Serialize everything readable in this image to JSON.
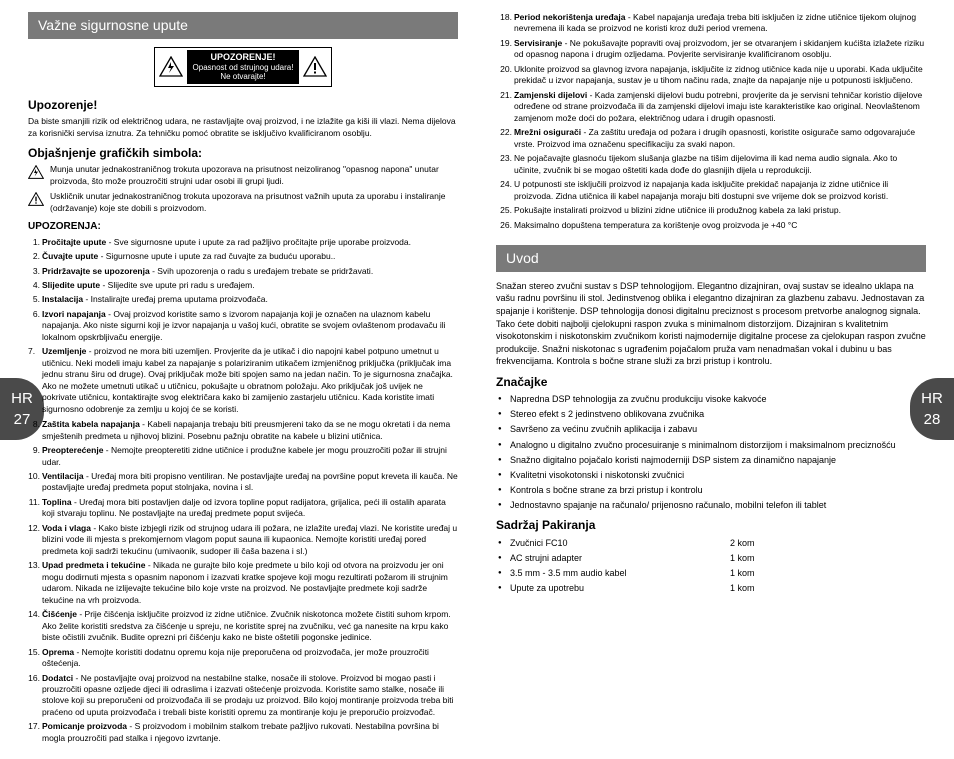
{
  "left_badge": {
    "lang": "HR",
    "page": "27"
  },
  "right_badge": {
    "lang": "HR",
    "page": "28"
  },
  "header_left": "Važne sigurnosne upute",
  "warning_box": {
    "title": "UPOZORENJE!",
    "line1": "Opasnost od strujnog udara!",
    "line2": "Ne otvarajte!"
  },
  "upozorenje_title": "Upozorenje!",
  "upozorenje_text": "Da biste smanjili rizik od električnog udara, ne rastavljajte ovaj proizvod, i ne izlažite ga kiši ili vlazi. Nema dijelova za korisnički servisa iznutra. Za tehničku pomoć obratite se isključivo kvalificiranom osoblju.",
  "simboli_title": "Objašnjenje grafičkih simbola:",
  "simbol1": "Munja unutar jednakostraničnog trokuta upozorava na prisutnost neizoliranog \"opasnog napona\" unutar proizvoda, što može prouzročiti strujni udar osobi ili grupi ljudi.",
  "simbol2": "Uskličnik unutar jednakostraničnog trokuta upozorava na prisutnost važnih uputa za uporabu i instaliranje (održavanje) koje ste dobili s proizvodom.",
  "upozorenja_label": "UPOZORENJA:",
  "list_left": [
    "<b>Pročitajte upute</b> - Sve sigurnosne upute i upute za rad pažljivo pročitajte prije uporabe proizvoda.",
    "<b>Čuvajte upute</b> - Sigurnosne upute i upute za rad čuvajte za buduću uporabu..",
    "<b>Pridržavajte se upozorenja</b> - Svih upozorenja o radu s uređajem trebate se pridržavati.",
    "<b>Slijedite upute</b> - Slijedite sve upute pri radu s uređajem.",
    "<b>Instalacija</b> - Instalirajte uređaj prema uputama proizvođača.",
    "<b>Izvori napajanja</b> - Ovaj proizvod koristite samo s izvorom napajanja koji je označen na ulaznom kabelu napajanja. Ako niste sigurni koji je izvor napajanja u vašoj kući, obratite se svojem ovlaštenom prodavaču ili lokalnom opskrbljivaču energije."
  ],
  "item7": "<b>Uzemljenje</b> - proizvod ne mora biti uzemljen. Provjerite da je utikač i dio napojni kabel potpuno umetnut u utičnicu. Neki modeli imaju kabel za napajanje s polariziranim utikačem izmjeničnog priključka (priključak ima jednu stranu širu od druge). Ovaj priključak može biti spojen samo na jedan način. To je sigurnosna značajka. Ako ne možete umetnuti utikač u utičnicu, pokušajte u obratnom položaju. Ako priključak još uvijek ne pokrivate utičnicu, kontaktirajte svog električara kako bi zamijenio zastarjelu utičnicu. Kada koristite imati sigurnosno odobrenje za zemlju u kojoj će se koristi.",
  "list_left2": [
    "<b>Zaštita kabela napajanja</b> - Kabeli napajanja trebaju biti preusmjereni tako da se ne mogu okretati i da nema smještenih predmeta u njihovoj blizini. Posebnu pažnju obratite na kabele u blizini utičnica.",
    "<b>Preopterećenje</b> - Nemojte preopteretiti zidne utičnice i produžne kabele jer mogu prouzročiti požar ili strujni udar.",
    "<b>Ventilacija</b> - Uređaj mora biti propisno ventiliran. Ne postavljajte uređaj na površine poput kreveta ili kauča. Ne postavljajte uređaj predmeta poput stolnjaka, novina i sl.",
    "<b>Toplina</b> - Uređaj mora biti postavljen dalje od izvora topline poput radijatora, grijalica, peći ili ostalih aparata koji stvaraju toplinu. Ne postavljajte na uređaj predmete poput svijeća.",
    "<b>Voda i vlaga</b> - Kako biste izbjegli rizik od strujnog udara ili požara, ne izlažite uređaj vlazi. Ne koristite uređaj u blizini vode ili mjesta s prekomjernom vlagom poput sauna ili kupaonica. Nemojte koristiti uređaj pored predmeta koji sadrži tekućinu (umivaonik, sudoper ili čaša bazena i sl.)",
    "<b>Upad predmeta i tekućine</b> - Nikada ne gurajte bilo koje predmete u bilo koji od otvora na proizvodu jer oni mogu dodirnuti mjesta s opasnim naponom i izazvati kratke spojeve koji mogu rezultirati požarom ili strujnim udarom. Nikada ne izlijevajte tekućine bilo koje vrste na proizvod. Ne postavljajte predmete koji sadrže tekućine na vrh proizvoda.",
    "<b>Čišćenje</b> - Prije čišćenja isključite proizvod iz zidne utičnice. Zvučnik niskotonca možete čistiti suhom krpom. Ako želite koristiti sredstva za čišćenje u spreju, ne koristite sprej na zvučniku, već ga nanesite na krpu kako biste očistili zvučnik. Budite oprezni pri čišćenju kako ne biste oštetili pogonske jedinice.",
    "<b>Oprema</b> - Nemojte koristiti dodatnu opremu koja nije preporučena od proizvođača, jer može prouzročiti oštećenja.",
    "<b>Dodatci</b> - Ne postavljajte ovaj proizvod na nestabilne stalke, nosače ili stolove. Proizvod bi mogao pasti i prouzročiti opasne ozljede djeci ili odraslima i izazvati oštećenje proizvoda. Koristite samo stalke, nosače ili stolove koji su preporučeni od proizvođača ili se prodaju uz proizvod. Bilo kojoj montiranje proizvoda treba biti praćeno od uputa proizvođača i trebali biste koristiti opremu za montiranje koju je preporučio proizvođač.",
    "<b>Pomicanje proizvoda</b> - S proizvodom i mobilnim stalkom trebate pažljivo rukovati. Nestabilna površina bi mogla prouzročiti pad stalka i njegovo izvrtanje."
  ],
  "list_right": [
    "<b>Period nekorištenja uređaja</b> - Kabel napajanja uređaja treba biti isključen iz zidne utičnice tijekom olujnog nevremena ili kada se proizvod ne koristi kroz duži period vremena.",
    "<b>Servisiranje</b> - Ne pokušavajte popraviti ovaj proizvodom, jer se otvaranjem i skidanjem kućišta izlažete riziku od opasnog napona i drugim ozljedama. Povjerite servisiranje kvalificiranom osoblju.",
    "Uklonite proizvod sa glavnog izvora napajanja, isključite iz zidnog utičnice kada nije u uporabi. Kada uključite prekidač u izvor napajanja, sustav je u tihom načinu rada, znajte da napajanje nije u potpunosti isključeno.",
    "<b>Zamjenski dijelovi</b> - Kada zamjenski dijelovi budu potrebni, provjerite da je servisni tehničar koristio dijelove određene od strane proizvođača ili da zamjenski dijelovi imaju iste karakteristike kao original. Neovlaštenom zamjenom može doći do požara, električnog udara i drugih opasnosti.",
    "<b>Mrežni osigurači</b> - Za zaštitu uređaja od požara i drugih opasnosti, koristite osigurače samo odgovarajuće vrste. Proizvod ima označenu specifikaciju za svaki napon.",
    "Ne pojačavajte glasnoću tijekom slušanja glazbe na tišim dijelovima ili kad nema audio signala. Ako to učinite, zvučnik bi se mogao oštetiti kada dođe do glasnijih dijela u reprodukciji.",
    "U potpunosti ste isključili proizvod iz napajanja kada isključite prekidač napajanja iz zidne utičnice ili proizvoda. Zidna utičnica ili kabel napajanja moraju biti dostupni sve vrijeme dok se proizvod koristi.",
    "Pokušajte instalirati proizvod u blizini zidne utičnice ili produžnog kabela za laki pristup.",
    "Maksimalno dopuštena temperatura za korištenje ovog proizvoda je +40 °C"
  ],
  "uvod_header": "Uvod",
  "uvod_text": "Snažan stereo zvučni sustav s DSP tehnologijom. Elegantno dizajniran, ovaj sustav se idealno uklapa na vašu radnu površinu ili stol.  Jedinstvenog oblika i elegantno dizajniran za glazbenu zabavu. Jednostavan za spajanje i korištenje. DSP tehnologija donosi digitalnu preciznost s procesom pretvorbe analognog signala. Tako ćete dobiti najbolji cjelokupni raspon zvuka s minimalnom distorzijom. Dizajniran s kvalitetnim visokotonskim i niskotonskim zvučnikom koristi najmodernije digitalne procese za cjelokupan raspon zvučne produkcije. Snažni niskotonac s ugrađenim pojačalom pruža vam nenadmašan vokal i dubinu u bas frekvencijama. Kontrola s bočne strane služi za brzi pristup i kontrolu.",
  "znacajke_title": "Značajke",
  "znacajke": [
    "Napredna DSP tehnologija za zvučnu produkciju visoke kakvoće",
    "Stereo efekt s 2 jedinstveno oblikovana zvučnika",
    "Savršeno za većinu zvučnih aplikacija i zabavu",
    "Analogno u digitalno zvučno procesuiranje s minimalnom distorzijom i maksimalnom preciznošću",
    "Snažno digitalno pojačalo koristi najmoderniji DSP sistem za dinamično napajanje",
    "Kvalitetni visokotonski i niskotonski zvučnici",
    "Kontrola s bočne strane za brzi pristup i kontrolu",
    "Jednostavno spajanje na računalo/ prijenosno računalo, mobilni telefon ili tablet"
  ],
  "sadrzaj_title": "Sadržaj Pakiranja",
  "sadrzaj": [
    {
      "name": "Zvučnici FC10",
      "qty": "2 kom"
    },
    {
      "name": "AC strujni adapter",
      "qty": "1 kom"
    },
    {
      "name": "3.5 mm - 3.5 mm audio kabel",
      "qty": "1 kom"
    },
    {
      "name": "Upute za upotrebu",
      "qty": "1 kom"
    }
  ]
}
